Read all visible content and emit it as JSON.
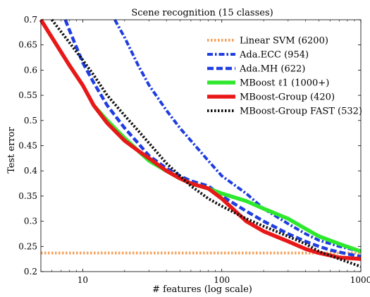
{
  "chart_data": {
    "type": "line",
    "title": "Scene recognition (15 classes)",
    "xlabel": "# features (log scale)",
    "ylabel": "Test error",
    "xscale": "log",
    "xlim": [
      5,
      1000
    ],
    "ylim": [
      0.2,
      0.7
    ],
    "x_ticks": [
      10,
      100,
      1000
    ],
    "x_tick_labels": [
      "10",
      "100",
      "1000"
    ],
    "y_ticks": [
      0.2,
      0.25,
      0.3,
      0.35,
      0.4,
      0.45,
      0.5,
      0.55,
      0.6,
      0.65,
      0.7
    ],
    "y_tick_labels": [
      "0.2",
      "0.25",
      "0.3",
      "0.35",
      "0.4",
      "0.45",
      "0.5",
      "0.55",
      "0.6",
      "0.65",
      "0.7"
    ],
    "grid": false,
    "legend_position": "top-right",
    "series": [
      {
        "name": "Linear SVM (6200)",
        "color": "#f5a25d",
        "style": "dotted",
        "x": [
          5,
          1000
        ],
        "y": [
          0.237,
          0.237
        ]
      },
      {
        "name": "Ada.ECC (954)",
        "color": "#1f3de0",
        "style": "dash-dot",
        "x": [
          17,
          20,
          25,
          30,
          40,
          50,
          60,
          80,
          100,
          150,
          200,
          300,
          400,
          500,
          700,
          1000
        ],
        "y": [
          0.7,
          0.665,
          0.61,
          0.57,
          0.52,
          0.485,
          0.46,
          0.42,
          0.39,
          0.355,
          0.325,
          0.295,
          0.275,
          0.262,
          0.25,
          0.24
        ]
      },
      {
        "name": "Ada.MH (622)",
        "color": "#1f3de0",
        "style": "dashed",
        "x": [
          7.5,
          8,
          10,
          12,
          15,
          20,
          25,
          30,
          40,
          50,
          60,
          80,
          100,
          150,
          200,
          300,
          400,
          500,
          600,
          800,
          1000
        ],
        "y": [
          0.7,
          0.68,
          0.615,
          0.575,
          0.53,
          0.485,
          0.455,
          0.43,
          0.405,
          0.39,
          0.38,
          0.37,
          0.35,
          0.32,
          0.3,
          0.275,
          0.26,
          0.25,
          0.243,
          0.235,
          0.23
        ]
      },
      {
        "name": "MBoost ℓ1 (1000+)",
        "color": "#2ee82e",
        "style": "solid",
        "x": [
          12,
          15,
          20,
          25,
          30,
          40,
          50,
          60,
          80,
          100,
          150,
          200,
          300,
          400,
          500,
          700,
          1000
        ],
        "y": [
          0.53,
          0.5,
          0.465,
          0.44,
          0.42,
          0.4,
          0.385,
          0.375,
          0.365,
          0.355,
          0.34,
          0.325,
          0.305,
          0.285,
          0.27,
          0.255,
          0.24
        ]
      },
      {
        "name": "MBoost-Group (420)",
        "color": "#e81818",
        "style": "solid",
        "x": [
          5,
          6,
          8,
          10,
          12,
          15,
          20,
          25,
          30,
          40,
          50,
          60,
          80,
          100,
          150,
          200,
          300,
          400,
          500,
          700,
          1000
        ],
        "y": [
          0.7,
          0.665,
          0.61,
          0.57,
          0.53,
          0.495,
          0.46,
          0.44,
          0.425,
          0.4,
          0.385,
          0.375,
          0.365,
          0.345,
          0.3,
          0.28,
          0.26,
          0.245,
          0.237,
          0.228,
          0.225
        ]
      },
      {
        "name": "MBoost-Group FAST (532)",
        "color": "#111111",
        "style": "dotted",
        "x": [
          6,
          8,
          10,
          12,
          15,
          20,
          25,
          30,
          40,
          50,
          60,
          80,
          100,
          150,
          200,
          300,
          400,
          500,
          700,
          1000
        ],
        "y": [
          0.7,
          0.655,
          0.62,
          0.59,
          0.55,
          0.51,
          0.48,
          0.455,
          0.415,
          0.39,
          0.37,
          0.345,
          0.33,
          0.305,
          0.29,
          0.27,
          0.255,
          0.24,
          0.225,
          0.21
        ]
      }
    ]
  }
}
